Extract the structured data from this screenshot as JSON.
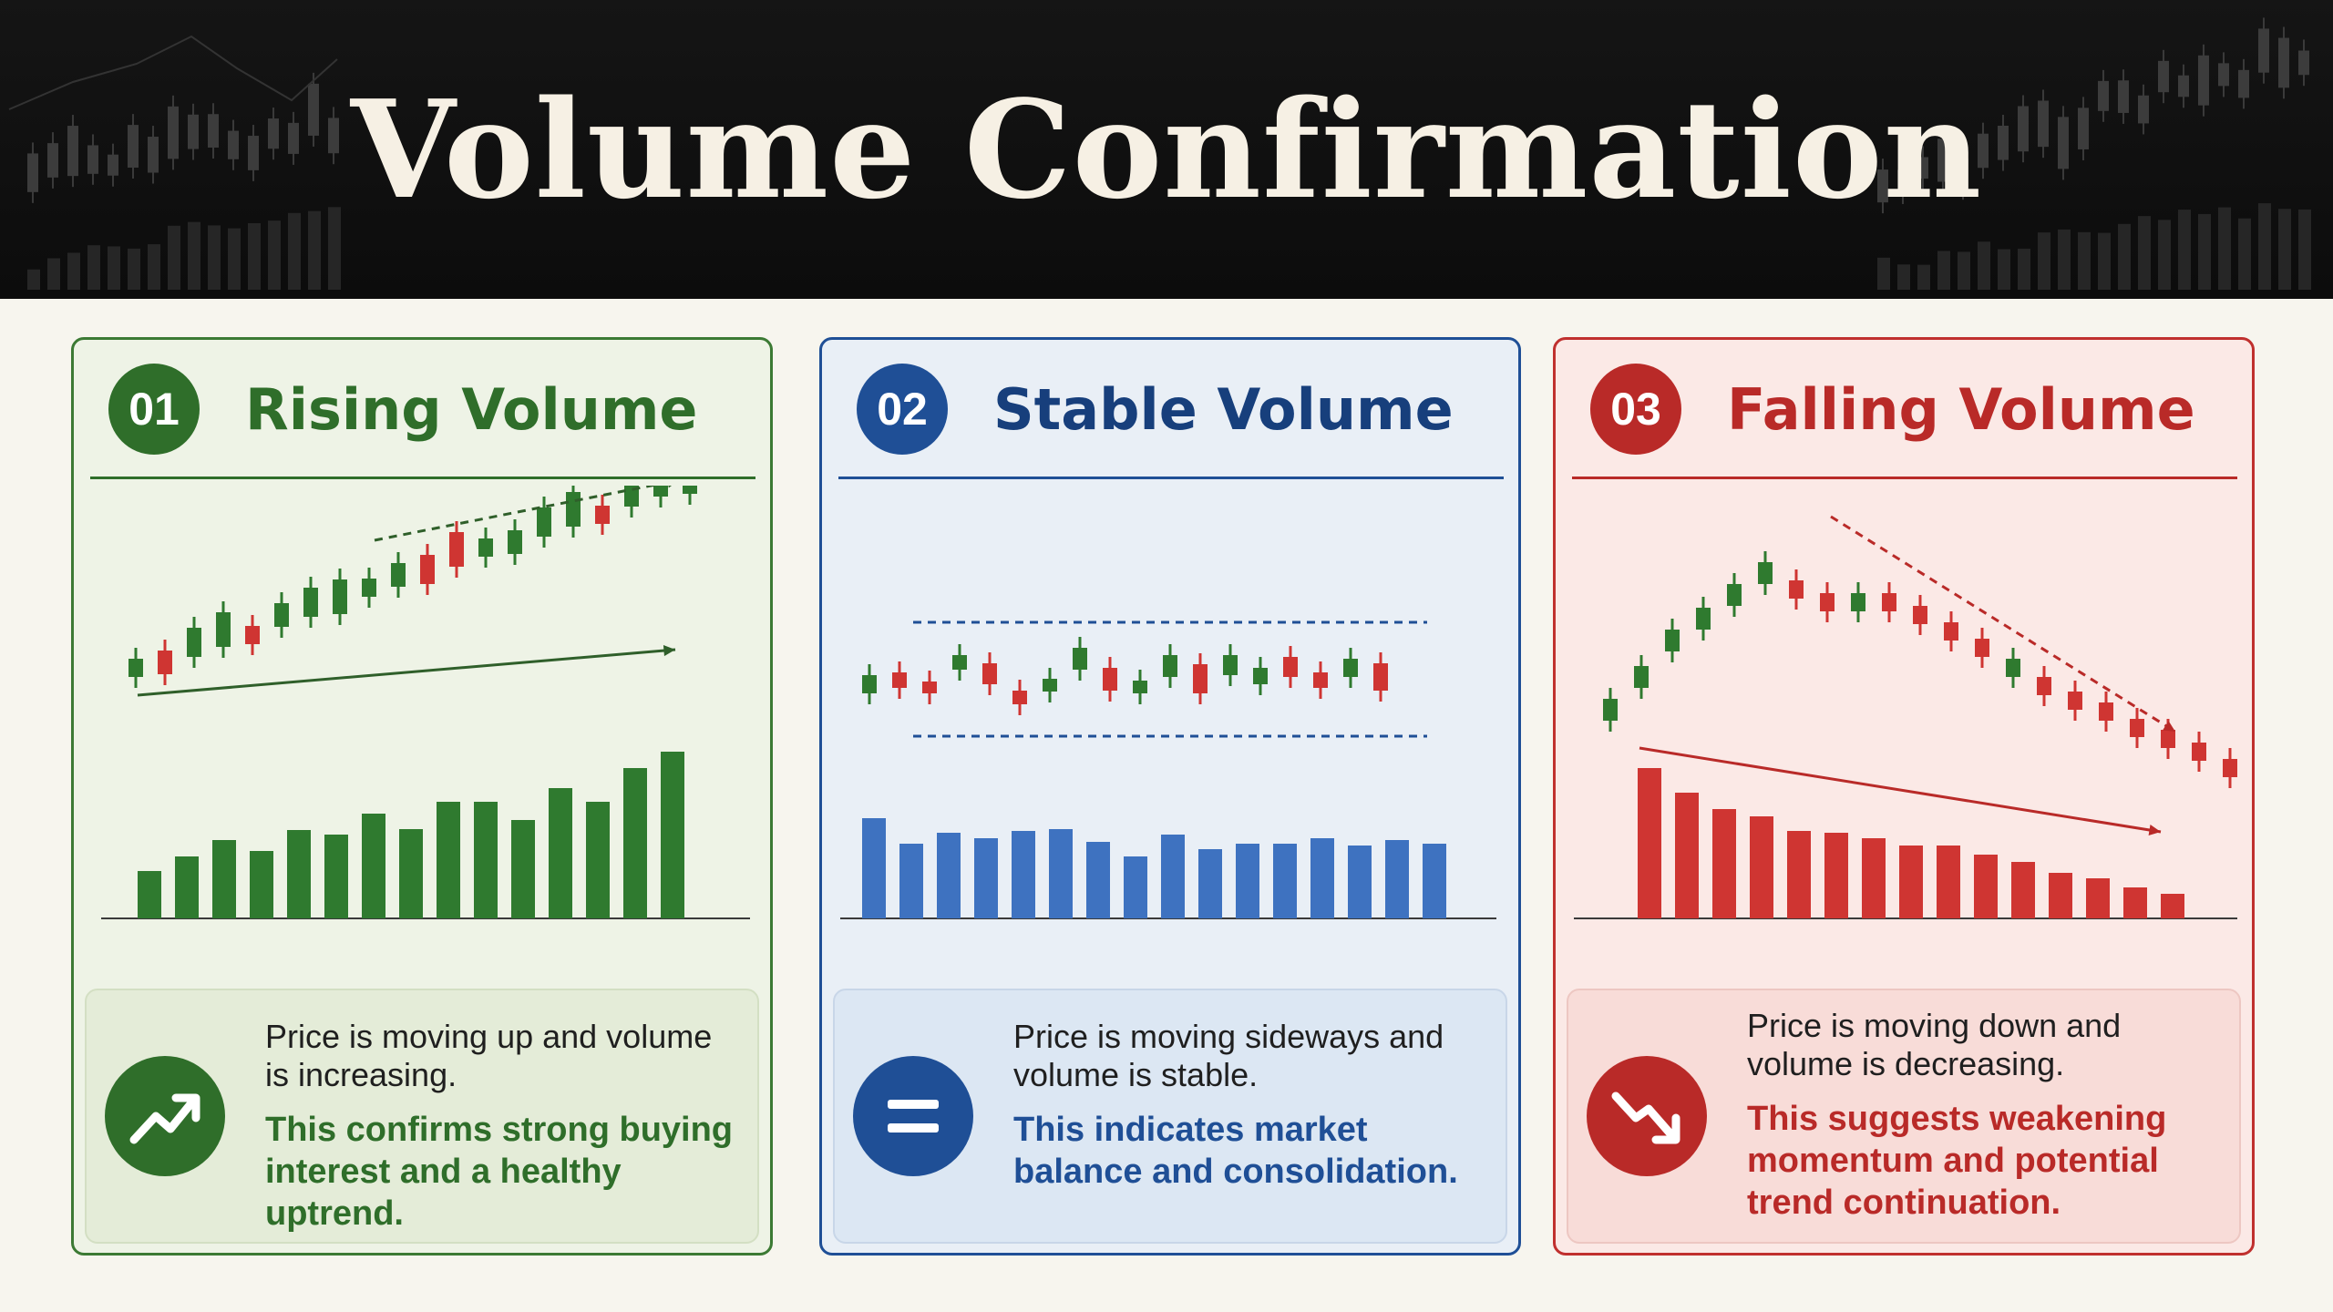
{
  "title": "Volume Confirmation",
  "colors": {
    "green": "#2f6e2a",
    "blue": "#1f4f96",
    "red": "#b92a28",
    "background": "#f7f5ee"
  },
  "panels": [
    {
      "number": "01",
      "title": "Rising Volume",
      "description": "Price is moving up and volume is increasing.",
      "conclusion": "This confirms strong buying interest and a healthy uptrend.",
      "icon": "trend-up-icon",
      "volume_trend": "rising",
      "price_trend": "rising"
    },
    {
      "number": "02",
      "title": "Stable Volume",
      "description": "Price is moving sideways and volume is stable.",
      "conclusion": "This indicates market balance and consolidation.",
      "icon": "equals-icon",
      "volume_trend": "stable",
      "price_trend": "sideways"
    },
    {
      "number": "03",
      "title": "Falling Volume",
      "description": "Price is moving down and volume is decreasing.",
      "conclusion": "This suggests weakening momentum and potential trend continuation.",
      "icon": "trend-down-icon",
      "volume_trend": "falling",
      "price_trend": "rising then falling"
    }
  ]
}
